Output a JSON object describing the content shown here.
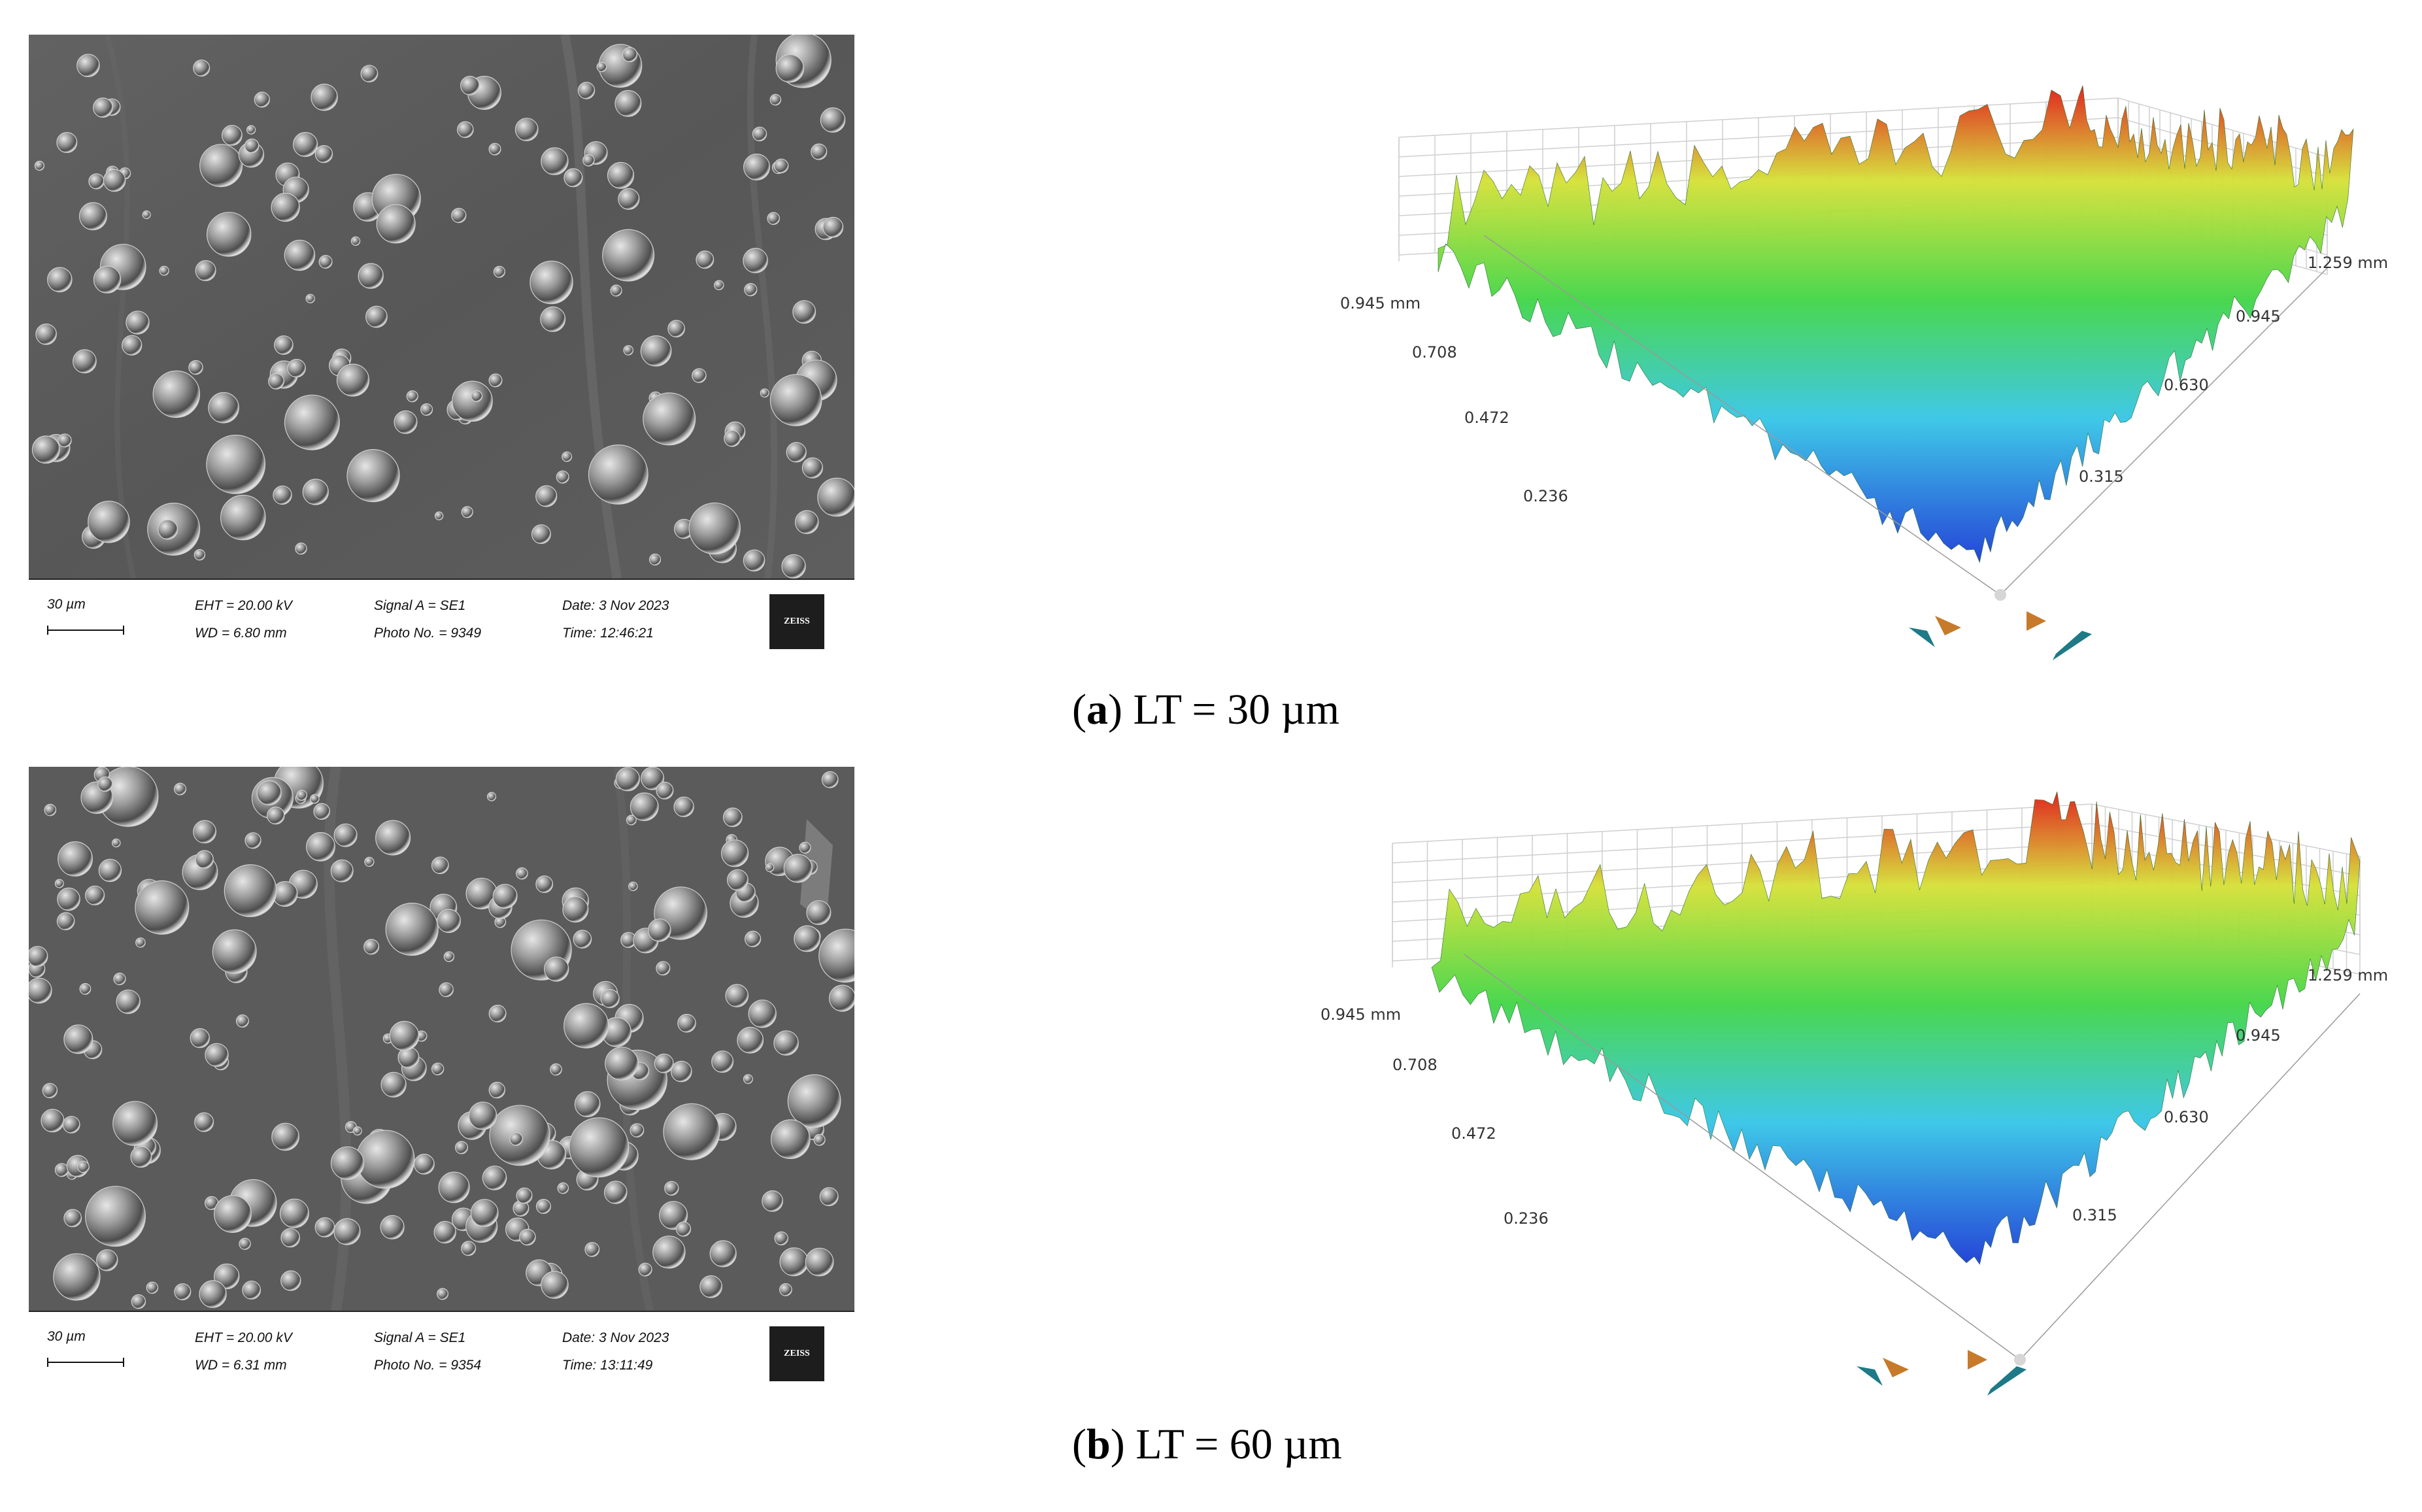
{
  "panels": [
    {
      "sem": {
        "scale": "30 µm",
        "eht": "EHT = 20.00 kV",
        "wd": "WD = 6.80 mm",
        "signal": "Signal A = SE1",
        "photo": "Photo No. = 9349",
        "date": "Date: 3 Nov 2023",
        "time": "Time: 12:46:21",
        "logo": "ZEISS"
      },
      "surface": {
        "y_ticks": [
          "0.945 mm",
          "0.708",
          "0.472",
          "0.236"
        ],
        "x_ticks": [
          "1.259 mm",
          "0.945",
          "0.630",
          "0.315"
        ]
      },
      "caption": {
        "letter": "a",
        "text": " LT = 30 µm"
      }
    },
    {
      "sem": {
        "scale": "30 µm",
        "eht": "EHT = 20.00 kV",
        "wd": "WD = 6.31 mm",
        "signal": "Signal A = SE1",
        "photo": "Photo No. = 9354",
        "date": "Date: 3 Nov 2023",
        "time": "Time: 13:11:49",
        "logo": "ZEISS"
      },
      "surface": {
        "y_ticks": [
          "0.945 mm",
          "0.708",
          "0.472",
          "0.236"
        ],
        "x_ticks": [
          "1.259 mm",
          "0.945",
          "0.630",
          "0.315"
        ]
      },
      "caption": {
        "letter": "b",
        "text": " LT = 60 µm"
      }
    }
  ],
  "colors": {
    "low": "#1f3fd6",
    "mid": "#3fd24a",
    "high": "#e0201a"
  }
}
